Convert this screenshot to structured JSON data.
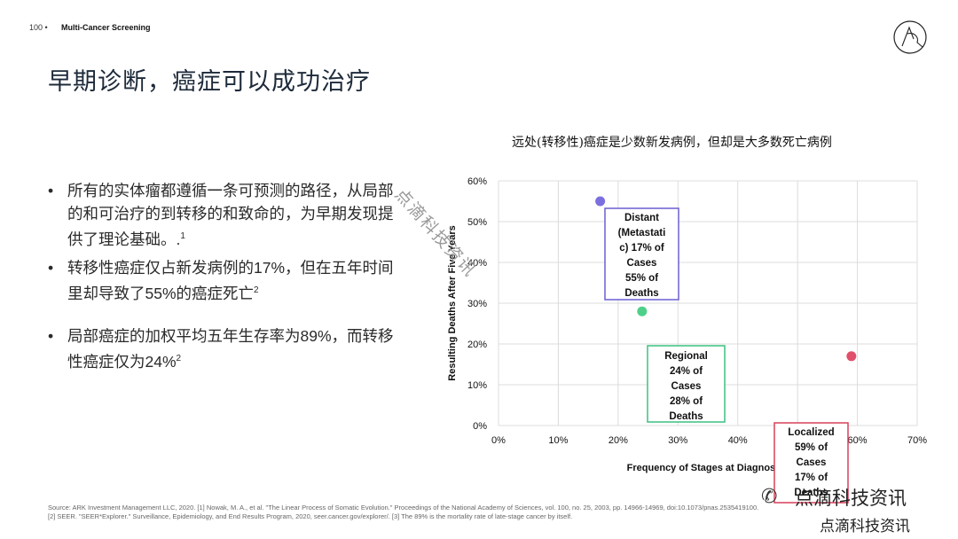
{
  "header": {
    "page_number": "100 •",
    "deck_title": "Multi-Cancer Screening"
  },
  "title": "早期诊断，癌症可以成功治疗",
  "bullets": [
    "所有的实体瘤都遵循一条可预测的路径，从局部的和可治疗的到转移的和致命的，为早期发现提供了理论基础。.",
    "转移性癌症仅占新发病例的17%，但在五年时间里却导致了55%的癌症死亡",
    "局部癌症的加权平均五年生存率为89%，而转移性癌症仅为24%"
  ],
  "bullet_sups": [
    "1",
    "2",
    "2"
  ],
  "chart_data": {
    "type": "scatter",
    "title": "远处(转移性)癌症是少数新发病例，但却是大多数死亡病例",
    "xlabel": "Frequency of Stages at Diagnosis",
    "ylabel": "Resulting Deaths After Five Years",
    "xlim": [
      0,
      70
    ],
    "ylim": [
      0,
      60
    ],
    "x_ticks": [
      "0%",
      "10%",
      "20%",
      "30%",
      "40%",
      "50%",
      "60%",
      "70%"
    ],
    "y_ticks": [
      "0%",
      "10%",
      "20%",
      "30%",
      "40%",
      "50%",
      "60%"
    ],
    "grid": true,
    "points": [
      {
        "name": "Distant",
        "x": 17,
        "y": 55,
        "color": "#7b6fe0"
      },
      {
        "name": "Regional",
        "x": 24,
        "y": 28,
        "color": "#4fd08a"
      },
      {
        "name": "Localized",
        "x": 59,
        "y": 17,
        "color": "#e0506a"
      }
    ],
    "annotations": [
      {
        "lines": [
          "Distant",
          "(Metastati",
          "c) 17% of",
          "Cases",
          "55% of",
          "Deaths"
        ],
        "color": "#6a5fd0"
      },
      {
        "lines": [
          "Regional",
          "24% of",
          "Cases",
          "28% of",
          "Deaths"
        ],
        "color": "#3cc080"
      },
      {
        "lines": [
          "Localized",
          "59% of",
          "Cases",
          "17% of",
          "Deaths"
        ],
        "color": "#d9405a"
      }
    ]
  },
  "source": {
    "line1": "Source: ARK Investment Management LLC, 2020. [1] Nowak, M. A., et al. \"The Linear Process of Somatic Evolution.\" Proceedings of the National Academy of Sciences, vol. 100, no. 25, 2003, pp. 14966-14969, doi:10.1073/pnas.2535419100.",
    "line2": "[2] SEER. \"SEER*Explorer.\" Surveillance, Epidemiology, and End Results Program, 2020, seer.cancer.gov/explorer/. [3] The 89% is the mortality rate of late-stage cancer by itself."
  },
  "watermark": {
    "main": "点滴科技资讯",
    "sub": "点滴科技资讯",
    "diagonal": "点滴科技资讯"
  }
}
